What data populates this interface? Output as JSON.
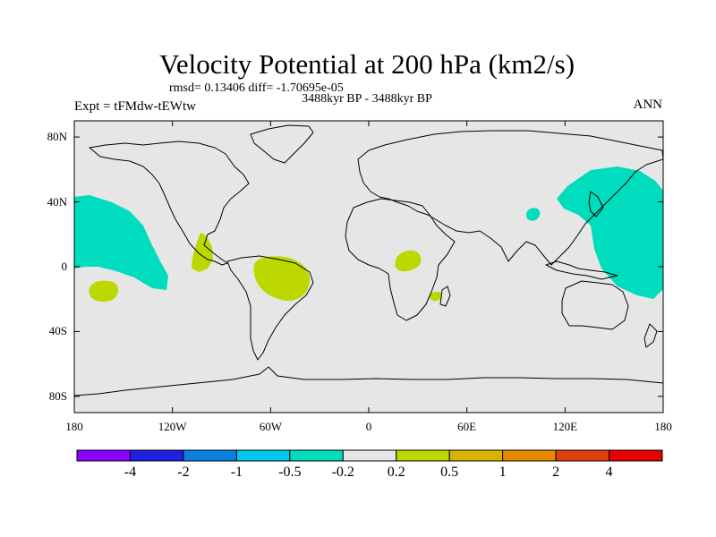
{
  "title": "Velocity Potential at 200 hPa (km2/s)",
  "stats": {
    "rmsd": "rmsd= 0.13406",
    "diff": "diff= -1.70695e-05"
  },
  "period": "3488kyr BP - 3488kyr BP",
  "experiment": "Expt = tFMdw-tEWtw",
  "season": "ANN",
  "map": {
    "projection": "cylindrical equidistant",
    "lon_range": [
      -180,
      180
    ],
    "lat_range": [
      -90,
      90
    ],
    "background_color": "#e6e6e6",
    "coastline_color": "#000000",
    "y_ticks": [
      {
        "label": "80N",
        "lat": 80
      },
      {
        "label": "40N",
        "lat": 40
      },
      {
        "label": "0",
        "lat": 0
      },
      {
        "label": "40S",
        "lat": -40
      },
      {
        "label": "80S",
        "lat": -80
      }
    ],
    "x_ticks": [
      {
        "label": "180",
        "lon": -180
      },
      {
        "label": "120W",
        "lon": -120
      },
      {
        "label": "60W",
        "lon": -60
      },
      {
        "label": "0",
        "lon": 0
      },
      {
        "label": "60E",
        "lon": 60
      },
      {
        "label": "120E",
        "lon": 120
      },
      {
        "label": "180",
        "lon": 180
      }
    ],
    "shaded_regions": [
      {
        "class": "-0.5 to -0.2",
        "color": "#00dcbe",
        "area": "northeast Pacific"
      },
      {
        "class": "-0.5 to -0.2",
        "color": "#00dcbe",
        "area": "western Pacific / East Asia"
      },
      {
        "class": "-0.5 to -0.2",
        "color": "#00dcbe",
        "area": "Tibetan Plateau"
      },
      {
        "class": "0.2 to 0.5",
        "color": "#bcd800",
        "area": "Central America"
      },
      {
        "class": "0.2 to 0.5",
        "color": "#bcd800",
        "area": "Amazon basin"
      },
      {
        "class": "0.2 to 0.5",
        "color": "#bcd800",
        "area": "central Africa"
      },
      {
        "class": "0.2 to 0.5",
        "color": "#bcd800",
        "area": "Madagascar"
      },
      {
        "class": "0.2 to 0.5",
        "color": "#bcd800",
        "area": "South Pacific"
      }
    ]
  },
  "colorbar": {
    "colors": [
      "#8c00ff",
      "#2020e0",
      "#0a80e0",
      "#00c8ea",
      "#00dcbe",
      "#e6e6e6",
      "#bcd800",
      "#d8b400",
      "#e88a00",
      "#e04010",
      "#e80000"
    ],
    "labels": [
      "-4",
      "-2",
      "-1",
      "-0.5",
      "-0.2",
      "0.2",
      "0.5",
      "1",
      "2",
      "4"
    ]
  }
}
